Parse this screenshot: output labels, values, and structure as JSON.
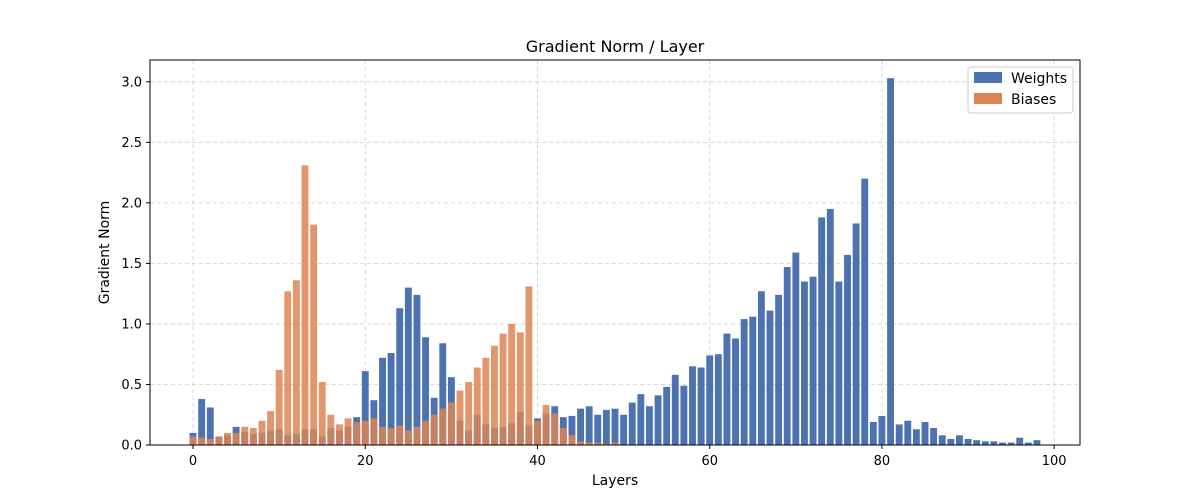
{
  "chart_data": {
    "type": "bar",
    "title": "Gradient Norm / Layer",
    "xlabel": "Layers",
    "ylabel": "Gradient Norm",
    "xlim": [
      -5,
      103
    ],
    "ylim": [
      0,
      3.18
    ],
    "xticks": [
      "0",
      "20",
      "40",
      "60",
      "80",
      "100"
    ],
    "yticks": [
      "0.0",
      "0.5",
      "1.0",
      "1.5",
      "2.0",
      "2.5",
      "3.0"
    ],
    "grid": true,
    "legend_position": "top-right",
    "series": [
      {
        "name": "Weights",
        "color": "#4c72b0",
        "x": [
          0,
          1,
          2,
          3,
          4,
          5,
          6,
          7,
          8,
          9,
          10,
          11,
          12,
          13,
          14,
          15,
          16,
          17,
          18,
          19,
          20,
          21,
          22,
          23,
          24,
          25,
          26,
          27,
          28,
          29,
          30,
          31,
          32,
          33,
          34,
          35,
          36,
          37,
          38,
          39,
          40,
          41,
          42,
          43,
          44,
          45,
          46,
          47,
          48,
          49,
          50,
          51,
          52,
          53,
          54,
          55,
          56,
          57,
          58,
          59,
          60,
          61,
          62,
          63,
          64,
          65,
          66,
          67,
          68,
          69,
          70,
          71,
          72,
          73,
          74,
          75,
          76,
          77,
          78,
          79,
          80,
          81,
          82,
          83,
          84,
          85,
          86,
          87,
          88,
          89,
          90,
          91,
          92,
          93,
          94,
          95,
          96,
          97,
          98
        ],
        "values": [
          0.1,
          0.38,
          0.31,
          0.07,
          0.08,
          0.15,
          0.11,
          0.09,
          0.1,
          0.12,
          0.13,
          0.08,
          0.09,
          0.13,
          0.13,
          0.07,
          0.14,
          0.12,
          0.15,
          0.23,
          0.61,
          0.37,
          0.72,
          0.76,
          1.13,
          1.3,
          1.24,
          0.89,
          0.39,
          0.84,
          0.56,
          0.2,
          0.12,
          0.25,
          0.17,
          0.14,
          0.15,
          0.18,
          0.27,
          0.16,
          0.22,
          0.26,
          0.32,
          0.23,
          0.24,
          0.3,
          0.32,
          0.25,
          0.29,
          0.3,
          0.25,
          0.35,
          0.42,
          0.32,
          0.41,
          0.48,
          0.58,
          0.49,
          0.65,
          0.64,
          0.74,
          0.75,
          0.92,
          0.88,
          1.04,
          1.06,
          1.27,
          1.11,
          1.24,
          1.47,
          1.59,
          1.35,
          1.39,
          1.88,
          1.95,
          1.35,
          1.57,
          1.83,
          2.2,
          0.19,
          0.24,
          3.03,
          0.17,
          0.2,
          0.13,
          0.19,
          0.14,
          0.08,
          0.05,
          0.08,
          0.05,
          0.04,
          0.03,
          0.03,
          0.02,
          0.02,
          0.06,
          0.02,
          0.04
        ]
      },
      {
        "name": "Biases",
        "color": "#dd8452",
        "x": [
          0,
          1,
          2,
          3,
          4,
          5,
          6,
          7,
          8,
          9,
          10,
          11,
          12,
          13,
          14,
          15,
          16,
          17,
          18,
          19,
          20,
          21,
          22,
          23,
          24,
          25,
          26,
          27,
          28,
          29,
          30,
          31,
          32,
          33,
          34,
          35,
          36,
          37,
          38,
          39,
          40,
          41,
          42,
          43,
          44,
          45,
          46,
          47,
          48,
          49
        ],
        "values": [
          0.07,
          0.06,
          0.05,
          0.07,
          0.1,
          0.1,
          0.15,
          0.14,
          0.2,
          0.28,
          0.62,
          1.27,
          1.36,
          2.31,
          1.82,
          0.52,
          0.25,
          0.17,
          0.22,
          0.19,
          0.2,
          0.22,
          0.15,
          0.14,
          0.16,
          0.12,
          0.15,
          0.2,
          0.25,
          0.3,
          0.35,
          0.45,
          0.52,
          0.64,
          0.72,
          0.82,
          0.92,
          1.0,
          0.93,
          1.31,
          0.2,
          0.33,
          0.26,
          0.14,
          0.08,
          0.03,
          0.02,
          0.02,
          0.01,
          0.02
        ]
      }
    ]
  }
}
